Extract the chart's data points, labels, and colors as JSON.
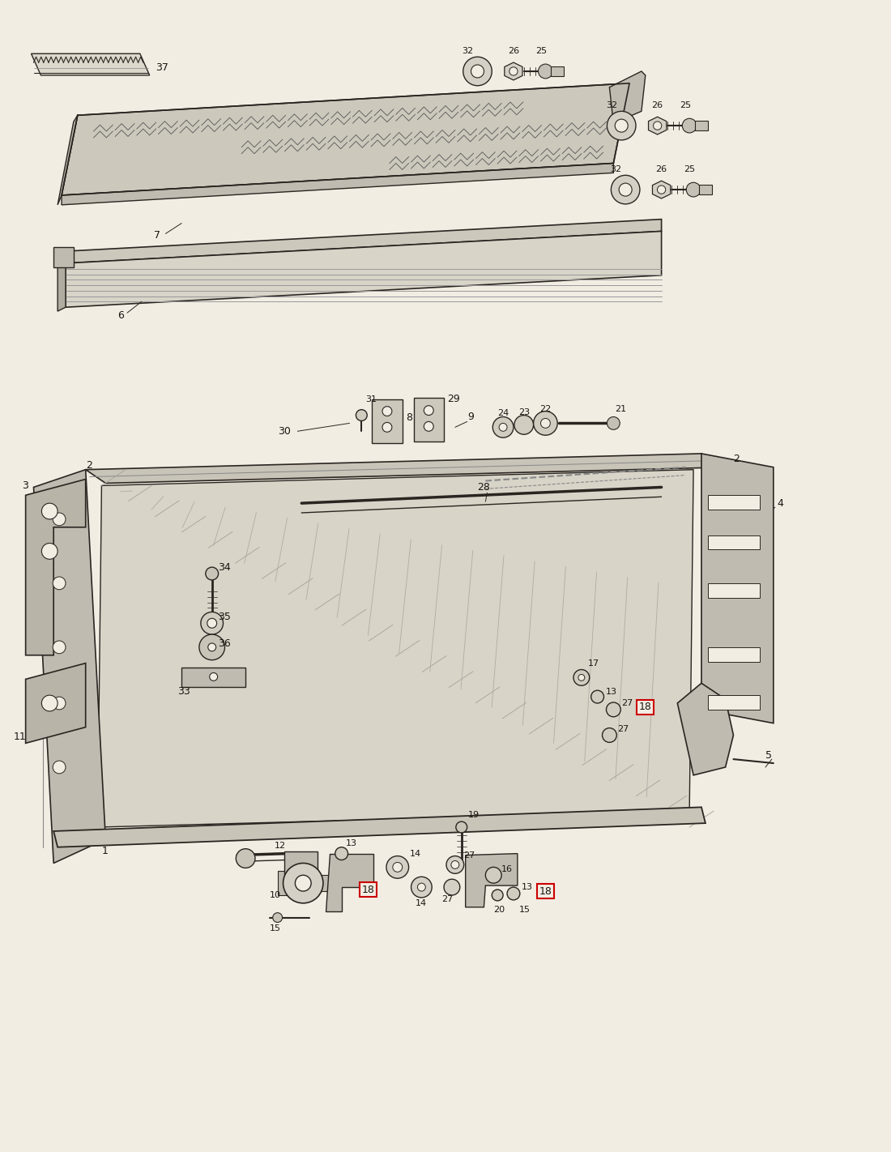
{
  "bg_color": "#f2ede3",
  "line_color": "#2a2520",
  "text_color": "#1a1510",
  "highlight_box_color": "#cc0000",
  "fig_width": 11.0,
  "fig_height": 14.22,
  "dpi": 100
}
